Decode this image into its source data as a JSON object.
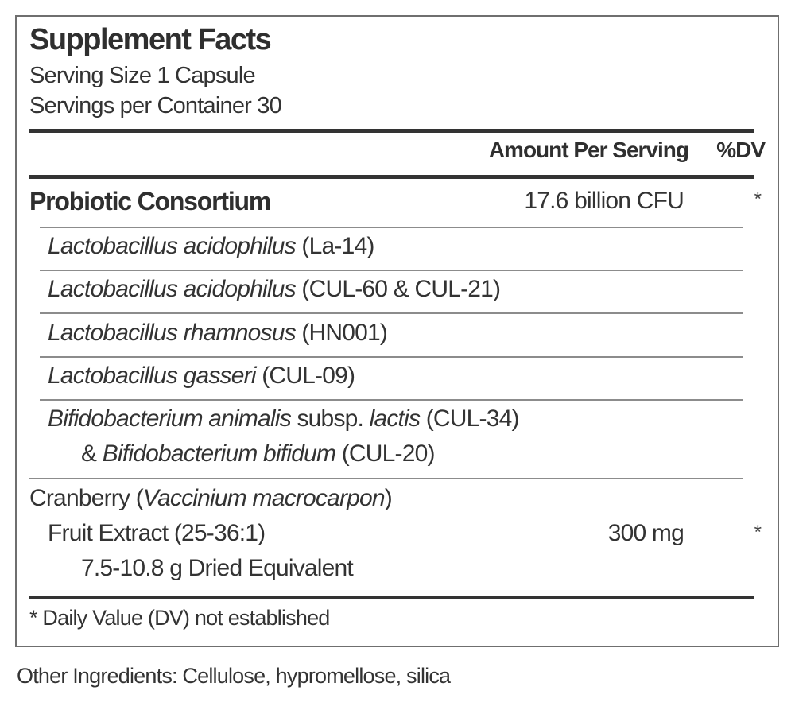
{
  "panel": {
    "title": "Supplement Facts",
    "serving_size": "Serving Size 1 Capsule",
    "servings_per_container": "Servings per Container 30",
    "header": {
      "amount": "Amount Per Serving",
      "dv": "%DV"
    },
    "probiotic": {
      "name": "Probiotic Consortium",
      "amount": "17.6 billion  CFU",
      "dv": "*"
    },
    "strains": [
      {
        "italic": "Lactobacillus acidophilus",
        "code": " (La-14)"
      },
      {
        "italic": "Lactobacillus acidophilus",
        "code": " (CUL-60 & CUL-21)"
      },
      {
        "italic": "Lactobacillus rhamnosus",
        "code": " (HN001)"
      },
      {
        "italic": "Lactobacillus gasseri",
        "code": " (CUL-09)"
      }
    ],
    "bifido": {
      "line1_italic_a": "Bifidobacterium animalis",
      "line1_plain_a": " subsp. ",
      "line1_italic_b": "lactis",
      "line1_plain_b": " (CUL-34)",
      "line2_plain_a": "& ",
      "line2_italic": "Bifidobacterium bifidum",
      "line2_plain_b": " (CUL-20)"
    },
    "cranberry": {
      "line1_plain_a": "Cranberry (",
      "line1_italic": "Vaccinium macrocarpon",
      "line1_plain_b": ")",
      "line2": "Fruit Extract (25-36:1)",
      "line3": "7.5-10.8 g Dried Equivalent",
      "amount": "300  mg",
      "dv": "*"
    },
    "footnote": "* Daily Value (DV) not established"
  },
  "other_ingredients": "Other Ingredients: Cellulose, hypromellose, silica"
}
